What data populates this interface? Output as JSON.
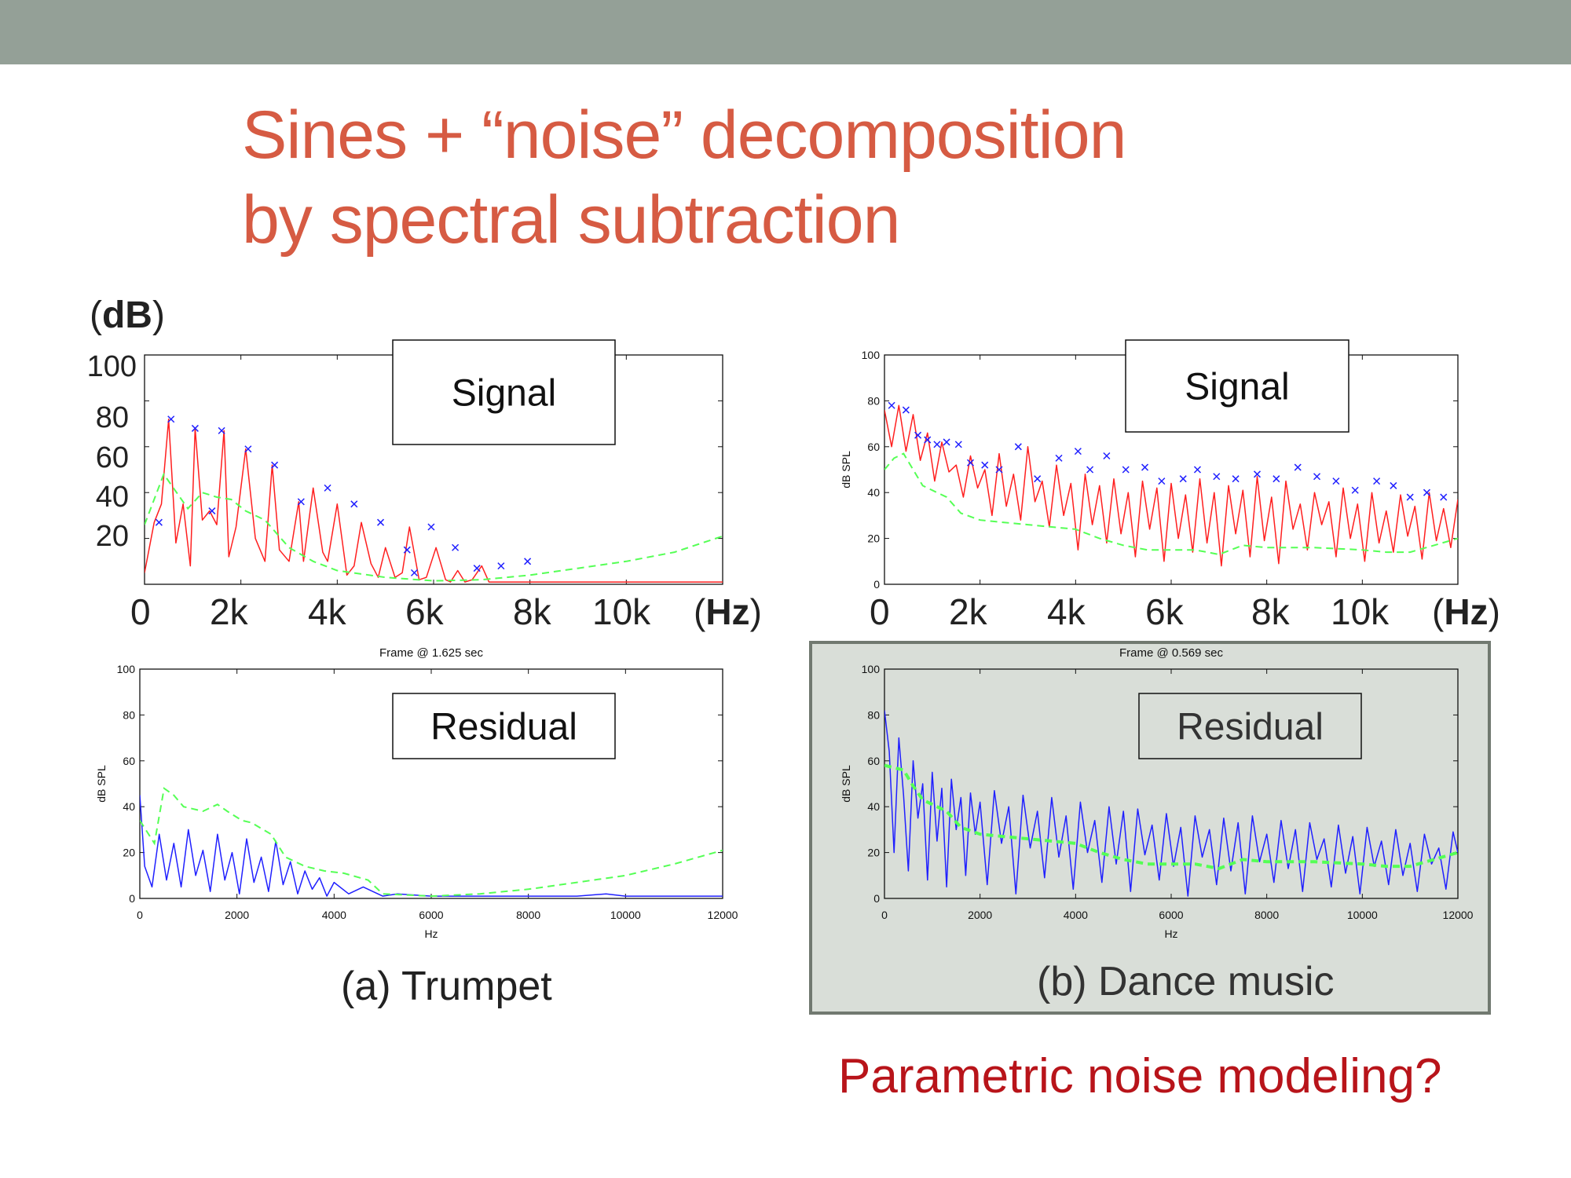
{
  "slide": {
    "title_line1": "Sines + “noise” decomposition",
    "title_line2": "by spectral subtraction",
    "db_label": "dB",
    "hz_label": "Hz",
    "caption_left": "(a) Trumpet",
    "caption_right": "(b) Dance music",
    "question": "Parametric noise modeling?",
    "colors": {
      "topbar": "#94a097",
      "title": "#d65b43",
      "question": "#b8141a",
      "signal_line": "#ff1f1f",
      "residual_line": "#2020ff",
      "noise_floor": "#55ff55",
      "peak_marker": "#2020ff",
      "panel_background": "#d9ded8"
    },
    "big_y_ticks": [
      "100",
      "80",
      "60",
      "40",
      "20"
    ],
    "big_x_ticks_left": [
      "0",
      "2k",
      "4k",
      "6k",
      "8k",
      "10k"
    ],
    "big_x_ticks_right": [
      "0",
      "2k",
      "4k",
      "6k",
      "8k",
      "10k"
    ]
  },
  "chart_data": [
    {
      "type": "line",
      "panel": "Trumpet signal",
      "legend": "Signal",
      "xlim": [
        0,
        12000
      ],
      "ylim": [
        0,
        100
      ],
      "series": [
        {
          "role": "signal",
          "x": [
            0,
            200,
            350,
            500,
            650,
            800,
            950,
            1050,
            1200,
            1350,
            1500,
            1650,
            1750,
            1900,
            2100,
            2300,
            2500,
            2650,
            2800,
            3000,
            3200,
            3300,
            3500,
            3700,
            3800,
            4000,
            4200,
            4350,
            4500,
            4700,
            4850,
            5000,
            5200,
            5350,
            5500,
            5700,
            5850,
            6050,
            6250,
            6350,
            6500,
            6650,
            6800,
            7000,
            7150,
            7300,
            7500,
            7700,
            7900,
            8150,
            8500,
            9000,
            9500,
            10000,
            11000,
            12000
          ],
          "y": [
            5,
            27,
            35,
            72,
            18,
            35,
            8,
            68,
            28,
            32,
            26,
            67,
            12,
            25,
            59,
            20,
            10,
            52,
            15,
            10,
            36,
            10,
            42,
            14,
            10,
            35,
            4,
            8,
            27,
            9,
            3,
            16,
            3,
            5,
            25,
            2,
            3,
            16,
            2,
            1,
            6,
            1,
            2,
            8,
            1,
            1,
            1,
            1,
            1,
            1,
            1,
            1,
            1,
            1,
            1,
            1
          ]
        },
        {
          "role": "noise floor",
          "x": [
            0,
            400,
            600,
            900,
            1200,
            1500,
            1800,
            2100,
            2500,
            3000,
            3500,
            4000,
            5000,
            6000,
            7000,
            8000,
            9000,
            10000,
            11000,
            12000
          ],
          "y": [
            26,
            48,
            42,
            33,
            40,
            38,
            37,
            32,
            28,
            16,
            10,
            6,
            3,
            1.5,
            2,
            4,
            7,
            10,
            14,
            21
          ]
        }
      ],
      "peaks": [
        {
          "x": 300,
          "y": 27
        },
        {
          "x": 550,
          "y": 72
        },
        {
          "x": 1050,
          "y": 68
        },
        {
          "x": 1400,
          "y": 32
        },
        {
          "x": 1600,
          "y": 67
        },
        {
          "x": 2150,
          "y": 59
        },
        {
          "x": 2700,
          "y": 52
        },
        {
          "x": 3250,
          "y": 36
        },
        {
          "x": 3800,
          "y": 42
        },
        {
          "x": 4350,
          "y": 35
        },
        {
          "x": 4900,
          "y": 27
        },
        {
          "x": 5450,
          "y": 15
        },
        {
          "x": 5600,
          "y": 5
        },
        {
          "x": 5950,
          "y": 25
        },
        {
          "x": 6450,
          "y": 16
        },
        {
          "x": 6900,
          "y": 7
        },
        {
          "x": 7400,
          "y": 8
        },
        {
          "x": 7950,
          "y": 10
        }
      ]
    },
    {
      "type": "line",
      "panel": "Trumpet residual",
      "legend": "Residual",
      "title": "Frame @ 1.625 sec",
      "xlabel": "Hz",
      "ylabel": "dB SPL",
      "xlim": [
        0,
        12000
      ],
      "ylim": [
        0,
        100
      ],
      "x_ticks": [
        "0",
        "2000",
        "4000",
        "6000",
        "8000",
        "10000",
        "12000"
      ],
      "y_ticks": [
        "0",
        "20",
        "40",
        "60",
        "80",
        "100"
      ],
      "series": [
        {
          "role": "residual",
          "x": [
            0,
            100,
            250,
            400,
            550,
            700,
            850,
            1000,
            1150,
            1300,
            1450,
            1600,
            1750,
            1900,
            2050,
            2200,
            2350,
            2500,
            2650,
            2800,
            2950,
            3100,
            3250,
            3400,
            3550,
            3700,
            3850,
            4000,
            4300,
            4600,
            5000,
            5300,
            6000,
            7000,
            8000,
            9000,
            9600,
            10000,
            11000,
            12000
          ],
          "y": [
            45,
            14,
            5,
            28,
            8,
            24,
            5,
            30,
            10,
            21,
            3,
            28,
            8,
            20,
            2,
            26,
            7,
            18,
            3,
            25,
            6,
            16,
            2,
            12,
            4,
            9,
            1,
            7,
            2,
            5,
            1,
            2,
            1,
            1,
            1,
            1,
            2,
            1,
            1,
            1
          ]
        },
        {
          "role": "noise floor",
          "x": [
            0,
            300,
            500,
            700,
            900,
            1300,
            1600,
            1800,
            2100,
            2300,
            2700,
            3000,
            3400,
            3800,
            4200,
            4700,
            5000,
            6000,
            7000,
            8000,
            9000,
            10000,
            11000,
            12000
          ],
          "y": [
            34,
            24,
            48,
            45,
            40,
            38,
            41,
            38,
            34,
            33,
            28,
            18,
            14,
            12,
            11,
            8,
            2,
            1,
            2,
            4,
            7,
            10,
            15,
            21
          ]
        }
      ]
    },
    {
      "type": "line",
      "panel": "Dance music signal",
      "legend": "Signal",
      "xlim": [
        0,
        12000
      ],
      "ylim": [
        0,
        100
      ],
      "y_ticks": [
        "0",
        "20",
        "40",
        "60",
        "80",
        "100"
      ],
      "ylabel": "dB SPL",
      "series": [
        {
          "role": "signal",
          "x": [
            0,
            150,
            300,
            450,
            600,
            750,
            900,
            1050,
            1200,
            1350,
            1500,
            1650,
            1800,
            1950,
            2100,
            2250,
            2400,
            2550,
            2700,
            2850,
            3000,
            3150,
            3300,
            3450,
            3600,
            3750,
            3900,
            4050,
            4200,
            4350,
            4500,
            4650,
            4800,
            4950,
            5100,
            5250,
            5400,
            5550,
            5700,
            5850,
            6000,
            6150,
            6300,
            6450,
            6600,
            6750,
            6900,
            7050,
            7200,
            7350,
            7500,
            7650,
            7800,
            7950,
            8100,
            8250,
            8400,
            8550,
            8700,
            8850,
            9000,
            9150,
            9300,
            9450,
            9600,
            9750,
            9900,
            10050,
            10200,
            10350,
            10500,
            10650,
            10800,
            10950,
            11100,
            11250,
            11400,
            11550,
            11700,
            11850,
            12000
          ],
          "y": [
            76,
            60,
            78,
            58,
            74,
            54,
            66,
            45,
            62,
            49,
            52,
            38,
            56,
            42,
            50,
            30,
            57,
            34,
            48,
            28,
            60,
            36,
            45,
            25,
            52,
            30,
            44,
            15,
            48,
            26,
            43,
            18,
            46,
            22,
            40,
            12,
            45,
            24,
            42,
            10,
            44,
            20,
            39,
            14,
            46,
            18,
            40,
            8,
            43,
            22,
            41,
            12,
            47,
            19,
            38,
            9,
            45,
            24,
            35,
            15,
            40,
            26,
            36,
            12,
            42,
            20,
            35,
            10,
            40,
            18,
            32,
            14,
            39,
            21,
            34,
            11,
            40,
            19,
            33,
            16,
            37
          ]
        },
        {
          "role": "noise floor",
          "x": [
            0,
            200,
            400,
            600,
            800,
            1100,
            1300,
            1600,
            2000,
            2500,
            3000,
            3500,
            4000,
            4500,
            5000,
            5500,
            6000,
            6500,
            7000,
            7500,
            8000,
            9000,
            10000,
            10500,
            11000,
            11500,
            12000
          ],
          "y": [
            50,
            55,
            57,
            50,
            43,
            40,
            38,
            31,
            28,
            27,
            26,
            25,
            24,
            20,
            17,
            15,
            15,
            15,
            13,
            17,
            16,
            16,
            15,
            14,
            14,
            17,
            20
          ]
        }
      ],
      "peaks": [
        {
          "x": 150,
          "y": 78
        },
        {
          "x": 450,
          "y": 76
        },
        {
          "x": 700,
          "y": 65
        },
        {
          "x": 900,
          "y": 63
        },
        {
          "x": 1100,
          "y": 61
        },
        {
          "x": 1300,
          "y": 62
        },
        {
          "x": 1550,
          "y": 61
        },
        {
          "x": 1800,
          "y": 53
        },
        {
          "x": 2100,
          "y": 52
        },
        {
          "x": 2400,
          "y": 50
        },
        {
          "x": 2800,
          "y": 60
        },
        {
          "x": 3200,
          "y": 46
        },
        {
          "x": 3650,
          "y": 55
        },
        {
          "x": 4050,
          "y": 58
        },
        {
          "x": 4300,
          "y": 50
        },
        {
          "x": 4650,
          "y": 56
        },
        {
          "x": 5050,
          "y": 50
        },
        {
          "x": 5450,
          "y": 51
        },
        {
          "x": 5800,
          "y": 45
        },
        {
          "x": 6250,
          "y": 46
        },
        {
          "x": 6550,
          "y": 50
        },
        {
          "x": 6950,
          "y": 47
        },
        {
          "x": 7350,
          "y": 46
        },
        {
          "x": 7800,
          "y": 48
        },
        {
          "x": 8200,
          "y": 46
        },
        {
          "x": 8650,
          "y": 51
        },
        {
          "x": 9050,
          "y": 47
        },
        {
          "x": 9450,
          "y": 45
        },
        {
          "x": 9850,
          "y": 41
        },
        {
          "x": 10300,
          "y": 45
        },
        {
          "x": 10650,
          "y": 43
        },
        {
          "x": 11000,
          "y": 38
        },
        {
          "x": 11350,
          "y": 40
        },
        {
          "x": 11700,
          "y": 38
        }
      ]
    },
    {
      "type": "line",
      "panel": "Dance music residual",
      "legend": "Residual",
      "title": "Frame @ 0.569 sec",
      "xlabel": "Hz",
      "ylabel": "dB SPL",
      "xlim": [
        0,
        12000
      ],
      "ylim": [
        0,
        100
      ],
      "x_ticks": [
        "0",
        "2000",
        "4000",
        "6000",
        "8000",
        "10000",
        "12000"
      ],
      "y_ticks": [
        "0",
        "20",
        "40",
        "60",
        "80",
        "100"
      ],
      "series": [
        {
          "role": "residual",
          "x": [
            0,
            100,
            200,
            300,
            400,
            500,
            600,
            700,
            800,
            900,
            1000,
            1100,
            1200,
            1300,
            1400,
            1500,
            1600,
            1700,
            1800,
            1900,
            2000,
            2150,
            2300,
            2450,
            2600,
            2750,
            2900,
            3050,
            3200,
            3350,
            3500,
            3650,
            3800,
            3950,
            4100,
            4250,
            4400,
            4550,
            4700,
            4850,
            5000,
            5150,
            5300,
            5450,
            5600,
            5750,
            5900,
            6050,
            6200,
            6350,
            6500,
            6650,
            6800,
            6950,
            7100,
            7250,
            7400,
            7550,
            7700,
            7850,
            8000,
            8150,
            8300,
            8450,
            8600,
            8750,
            8900,
            9050,
            9200,
            9350,
            9500,
            9650,
            9800,
            9950,
            10100,
            10250,
            10400,
            10550,
            10700,
            10850,
            11000,
            11150,
            11300,
            11450,
            11600,
            11750,
            11900,
            12000
          ],
          "y": [
            82,
            64,
            20,
            70,
            45,
            12,
            60,
            35,
            50,
            8,
            55,
            25,
            48,
            5,
            52,
            30,
            44,
            10,
            46,
            28,
            42,
            6,
            47,
            24,
            40,
            2,
            45,
            22,
            38,
            9,
            44,
            18,
            36,
            4,
            42,
            20,
            34,
            7,
            40,
            15,
            38,
            3,
            39,
            19,
            32,
            8,
            37,
            14,
            31,
            1,
            36,
            18,
            30,
            6,
            35,
            12,
            33,
            2,
            36,
            16,
            28,
            7,
            34,
            13,
            30,
            3,
            33,
            17,
            26,
            5,
            32,
            11,
            27,
            2,
            31,
            14,
            25,
            6,
            30,
            10,
            24,
            3,
            28,
            15,
            22,
            4,
            29,
            20
          ]
        },
        {
          "role": "noise floor",
          "x": [
            0,
            200,
            400,
            600,
            800,
            1100,
            1300,
            1600,
            2000,
            2500,
            3000,
            3500,
            4000,
            4500,
            5000,
            5500,
            6000,
            6500,
            7000,
            7500,
            8000,
            9000,
            10000,
            10500,
            11000,
            11500,
            12000
          ],
          "y": [
            58,
            57,
            56,
            49,
            43,
            40,
            38,
            31,
            28,
            27,
            26,
            25,
            24,
            20,
            17,
            15,
            15,
            15,
            13,
            17,
            16,
            16,
            15,
            14,
            14,
            17,
            20
          ]
        }
      ]
    }
  ]
}
